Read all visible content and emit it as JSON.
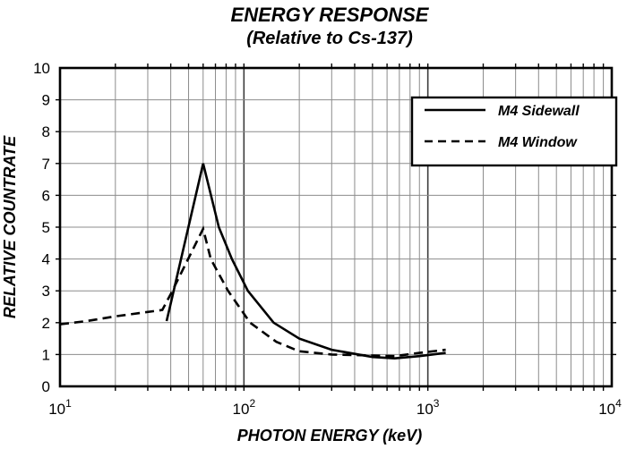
{
  "title": "ENERGY RESPONSE",
  "subtitle": "(Relative to Cs-137)",
  "chart_data": {
    "type": "line",
    "title": "ENERGY RESPONSE",
    "subtitle": "(Relative to Cs-137)",
    "xlabel": "PHOTON ENERGY (keV)",
    "ylabel": "RELATIVE COUNTRATE",
    "x_scale": "log",
    "x_range": [
      10,
      10000
    ],
    "x_decade_exponents": [
      1,
      2,
      3,
      4
    ],
    "y_range": [
      0,
      10
    ],
    "y_ticks": [
      0,
      1,
      2,
      3,
      4,
      5,
      6,
      7,
      8,
      9,
      10
    ],
    "grid": "on",
    "legend_position": "top-right-inside",
    "series": [
      {
        "name": "M4 Sidewall",
        "style": "solid",
        "color": "#000000",
        "points": [
          [
            38,
            2.05
          ],
          [
            40,
            2.6
          ],
          [
            60,
            7.0
          ],
          [
            73,
            5.0
          ],
          [
            86,
            4.0
          ],
          [
            105,
            3.0
          ],
          [
            145,
            2.0
          ],
          [
            200,
            1.5
          ],
          [
            300,
            1.15
          ],
          [
            500,
            0.92
          ],
          [
            660,
            0.88
          ],
          [
            900,
            0.95
          ],
          [
            1250,
            1.05
          ]
        ]
      },
      {
        "name": "M4 Window",
        "style": "dashed",
        "color": "#000000",
        "points": [
          [
            10,
            1.95
          ],
          [
            14,
            2.05
          ],
          [
            20,
            2.2
          ],
          [
            27,
            2.3
          ],
          [
            36,
            2.4
          ],
          [
            40,
            2.9
          ],
          [
            60,
            4.95
          ],
          [
            66,
            4.0
          ],
          [
            82,
            3.0
          ],
          [
            108,
            2.0
          ],
          [
            150,
            1.4
          ],
          [
            200,
            1.1
          ],
          [
            300,
            1.0
          ],
          [
            500,
            0.97
          ],
          [
            660,
            0.95
          ],
          [
            900,
            1.05
          ],
          [
            1250,
            1.15
          ]
        ]
      }
    ]
  },
  "colors": {
    "background": "#ffffff",
    "frame": "#000000",
    "line": "#000000",
    "grid_minor": "#8c8c8c",
    "grid_major": "#3c3c3c",
    "legend_border": "#000000",
    "legend_fill": "#ffffff"
  }
}
